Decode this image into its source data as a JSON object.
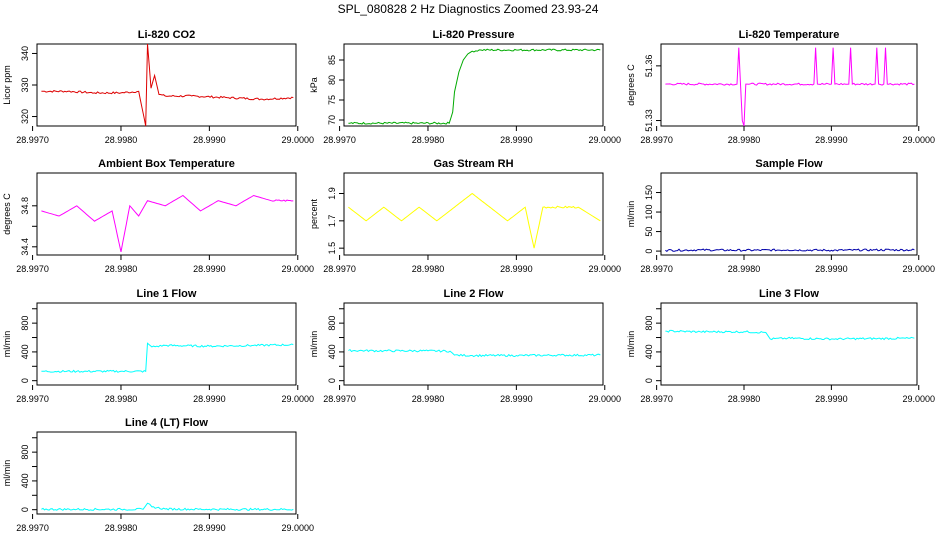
{
  "figure_title": "SPL_080828  2 Hz Diagnostics Zoomed 23.93-24",
  "chart_data": [
    {
      "type": "line",
      "title": "Li-820 CO2",
      "ylabel": "Licor ppm",
      "color": "#dd0000",
      "xlim": [
        28.99705,
        28.99998
      ],
      "ylim": [
        317,
        343
      ],
      "yticks": [
        320,
        330,
        340
      ],
      "ytick_labels": [
        "320",
        "330",
        "340"
      ],
      "xticks": [
        28.997,
        28.998,
        28.999,
        29.0
      ],
      "xtick_labels": [
        "28.9970",
        "28.9980",
        "28.9990",
        "29.0000"
      ],
      "x": [
        28.9971,
        28.9974,
        28.9977,
        28.998,
        28.9982,
        28.99828,
        28.9983,
        28.99832,
        28.99834,
        28.99838,
        28.99843,
        28.9985,
        28.9988,
        28.9992,
        28.9996,
        28.99995
      ],
      "values": [
        328,
        328,
        327.5,
        327.5,
        328,
        317,
        343,
        336,
        329,
        333,
        327,
        326.5,
        326.5,
        326,
        325.5,
        326
      ]
    },
    {
      "type": "line",
      "title": "Li-820 Pressure",
      "ylabel": "kPa",
      "color": "#00aa00",
      "xlim": [
        28.99705,
        28.99998
      ],
      "ylim": [
        68.5,
        89
      ],
      "yticks": [
        70,
        75,
        80,
        85
      ],
      "ytick_labels": [
        "70",
        "75",
        "80",
        "85"
      ],
      "xticks": [
        28.997,
        28.998,
        28.999,
        29.0
      ],
      "xtick_labels": [
        "28.9970",
        "28.9980",
        "28.9990",
        "29.0000"
      ],
      "x": [
        28.9971,
        28.9979,
        28.99824,
        28.99828,
        28.9983,
        28.99835,
        28.9984,
        28.99845,
        28.9985,
        28.9986,
        28.999,
        28.99995
      ],
      "values": [
        69.2,
        69.2,
        69.2,
        72,
        77,
        82,
        85,
        86.5,
        87.2,
        87.5,
        87.5,
        87.5
      ]
    },
    {
      "type": "line",
      "title": "Li-820 Temperature",
      "ylabel": "degrees C",
      "color": "#ff00ff",
      "xlim": [
        28.99705,
        28.99998
      ],
      "ylim": [
        51.327,
        51.372
      ],
      "yticks": [
        51.33,
        51.36
      ],
      "ytick_labels": [
        "51.33",
        "51.36"
      ],
      "xticks": [
        28.997,
        28.998,
        28.999,
        29.0
      ],
      "xtick_labels": [
        "28.9970",
        "28.9980",
        "28.9990",
        "29.0000"
      ],
      "x": [
        28.9971,
        28.99792,
        28.99794,
        28.99796,
        28.99798,
        28.998,
        28.99802,
        28.99804,
        28.9988,
        28.99882,
        28.99884,
        28.999,
        28.99902,
        28.99904,
        28.9992,
        28.99922,
        28.99924,
        28.9995,
        28.99952,
        28.99954,
        28.9996,
        28.99962,
        28.99964,
        28.99995
      ],
      "values": [
        51.35,
        51.35,
        51.37,
        51.35,
        51.33,
        51.327,
        51.35,
        51.35,
        51.35,
        51.37,
        51.35,
        51.35,
        51.37,
        51.35,
        51.35,
        51.37,
        51.35,
        51.35,
        51.37,
        51.35,
        51.35,
        51.37,
        51.35,
        51.35
      ]
    },
    {
      "type": "line",
      "title": "Ambient Box Temperature",
      "ylabel": "degrees C",
      "color": "#ff00ff",
      "xlim": [
        28.99705,
        28.99998
      ],
      "ylim": [
        34.32,
        35.12
      ],
      "yticks": [
        34.4,
        34.6,
        34.8
      ],
      "ytick_labels": [
        "34.4",
        "",
        "34.8"
      ],
      "xticks": [
        28.997,
        28.998,
        28.999,
        29.0
      ],
      "xtick_labels": [
        "28.9970",
        "28.9980",
        "28.9990",
        "29.0000"
      ],
      "x": [
        28.9971,
        28.9973,
        28.9975,
        28.9977,
        28.9979,
        28.998,
        28.9981,
        28.9982,
        28.9983,
        28.9985,
        28.9987,
        28.9989,
        28.9991,
        28.9993,
        28.9995,
        28.9997,
        28.99995
      ],
      "values": [
        34.75,
        34.7,
        34.8,
        34.65,
        34.75,
        34.35,
        34.8,
        34.7,
        34.85,
        34.8,
        34.9,
        34.75,
        34.85,
        34.8,
        34.9,
        34.85,
        34.85
      ]
    },
    {
      "type": "line",
      "title": "Gas Stream RH",
      "ylabel": "percent",
      "color": "#ffff00",
      "xlim": [
        28.99705,
        28.99998
      ],
      "ylim": [
        1.45,
        2.05
      ],
      "yticks": [
        1.5,
        1.7,
        1.9
      ],
      "ytick_labels": [
        "1.5",
        "1.7",
        "1.9"
      ],
      "xticks": [
        28.997,
        28.998,
        28.999,
        29.0
      ],
      "xtick_labels": [
        "28.9970",
        "28.9980",
        "28.9990",
        "29.0000"
      ],
      "x": [
        28.9971,
        28.9973,
        28.9975,
        28.9977,
        28.9979,
        28.9981,
        28.9983,
        28.9985,
        28.9987,
        28.9989,
        28.9991,
        28.9992,
        28.9993,
        28.9995,
        28.9997,
        28.99995
      ],
      "values": [
        1.8,
        1.7,
        1.8,
        1.7,
        1.8,
        1.7,
        1.8,
        1.9,
        1.8,
        1.7,
        1.8,
        1.5,
        1.8,
        1.8,
        1.8,
        1.7
      ]
    },
    {
      "type": "line",
      "title": "Sample Flow",
      "ylabel": "ml/min",
      "color": "#0000aa",
      "xlim": [
        28.99705,
        28.99998
      ],
      "ylim": [
        -10,
        200
      ],
      "yticks": [
        0,
        50,
        100,
        150
      ],
      "ytick_labels": [
        "0",
        "50",
        "100",
        "150"
      ],
      "xticks": [
        28.997,
        28.998,
        28.999,
        29.0
      ],
      "xtick_labels": [
        "28.9970",
        "28.9980",
        "28.9990",
        "29.0000"
      ],
      "x": [
        28.9971,
        28.9975,
        28.998,
        28.9985,
        28.999,
        28.9995,
        28.99995
      ],
      "values": [
        2,
        3,
        2,
        3,
        2,
        3,
        3
      ]
    },
    {
      "type": "line",
      "title": "Line 1 Flow",
      "ylabel": "ml/min",
      "color": "#00ffff",
      "xlim": [
        28.99705,
        28.99998
      ],
      "ylim": [
        -60,
        1080
      ],
      "yticks": [
        0,
        200,
        400,
        600,
        800,
        1000
      ],
      "ytick_labels": [
        "0",
        "",
        "400",
        "",
        "800",
        ""
      ],
      "xticks": [
        28.997,
        28.998,
        28.999,
        29.0
      ],
      "xtick_labels": [
        "28.9970",
        "28.9980",
        "28.9990",
        "29.0000"
      ],
      "x": [
        28.9971,
        28.9975,
        28.998,
        28.99828,
        28.9983,
        28.99835,
        28.9985,
        28.999,
        28.9995,
        28.99995
      ],
      "values": [
        130,
        130,
        130,
        130,
        520,
        470,
        490,
        480,
        490,
        500
      ]
    },
    {
      "type": "line",
      "title": "Line 2 Flow",
      "ylabel": "ml/min",
      "color": "#00ffff",
      "xlim": [
        28.99705,
        28.99998
      ],
      "ylim": [
        -60,
        1080
      ],
      "yticks": [
        0,
        200,
        400,
        600,
        800,
        1000
      ],
      "ytick_labels": [
        "0",
        "",
        "400",
        "",
        "800",
        ""
      ],
      "xticks": [
        28.997,
        28.998,
        28.999,
        29.0
      ],
      "xtick_labels": [
        "28.9970",
        "28.9980",
        "28.9990",
        "29.0000"
      ],
      "x": [
        28.9971,
        28.9975,
        28.998,
        28.99825,
        28.9983,
        28.9985,
        28.999,
        28.9995,
        28.99995
      ],
      "values": [
        420,
        415,
        415,
        410,
        355,
        350,
        350,
        355,
        355
      ]
    },
    {
      "type": "line",
      "title": "Line 3 Flow",
      "ylabel": "ml/min",
      "color": "#00ffff",
      "xlim": [
        28.99705,
        28.99998
      ],
      "ylim": [
        -60,
        1080
      ],
      "yticks": [
        0,
        200,
        400,
        600,
        800,
        1000
      ],
      "ytick_labels": [
        "0",
        "",
        "400",
        "",
        "800",
        ""
      ],
      "xticks": [
        28.997,
        28.998,
        28.999,
        29.0
      ],
      "xtick_labels": [
        "28.9970",
        "28.9980",
        "28.9990",
        "29.0000"
      ],
      "x": [
        28.9971,
        28.9975,
        28.998,
        28.99825,
        28.9983,
        28.9985,
        28.999,
        28.9995,
        28.99995
      ],
      "values": [
        690,
        680,
        680,
        670,
        580,
        590,
        580,
        585,
        590
      ]
    },
    {
      "type": "line",
      "title": "Line 4 (LT) Flow",
      "ylabel": "ml/min",
      "color": "#00ffff",
      "xlim": [
        28.99705,
        28.99998
      ],
      "ylim": [
        -60,
        1080
      ],
      "yticks": [
        0,
        200,
        400,
        600,
        800,
        1000
      ],
      "ytick_labels": [
        "0",
        "",
        "400",
        "",
        "800",
        ""
      ],
      "xticks": [
        28.997,
        28.998,
        28.999,
        29.0
      ],
      "xtick_labels": [
        "28.9970",
        "28.9980",
        "28.9990",
        "29.0000"
      ],
      "x": [
        28.9971,
        28.9975,
        28.998,
        28.99825,
        28.9983,
        28.99835,
        28.9985,
        28.999,
        28.9995,
        28.99995
      ],
      "values": [
        5,
        5,
        5,
        5,
        90,
        40,
        10,
        5,
        5,
        5
      ]
    }
  ]
}
